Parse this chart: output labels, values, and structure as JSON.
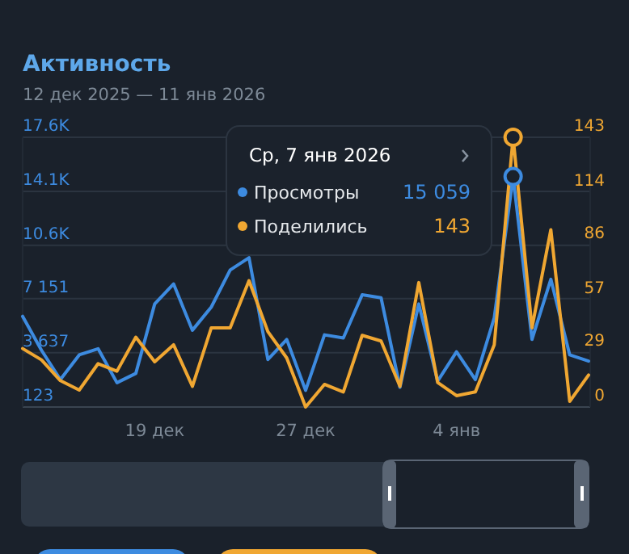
{
  "chart_data": {
    "type": "line",
    "title": "Активность",
    "subtitle": "12 дек 2025 — 11 янв 2026",
    "annotations": [
      "Ср, 7 янв 2026",
      "15 059",
      "143"
    ],
    "x": [
      "2025-12-12",
      "2025-12-13",
      "2025-12-14",
      "2025-12-15",
      "2025-12-16",
      "2025-12-17",
      "2025-12-18",
      "2025-12-19",
      "2025-12-20",
      "2025-12-21",
      "2025-12-22",
      "2025-12-23",
      "2025-12-24",
      "2025-12-25",
      "2025-12-26",
      "2025-12-27",
      "2025-12-28",
      "2025-12-29",
      "2025-12-30",
      "2025-12-31",
      "2026-01-01",
      "2026-01-02",
      "2026-01-03",
      "2026-01-04",
      "2026-01-05",
      "2026-01-06",
      "2026-01-07",
      "2026-01-08",
      "2026-01-09",
      "2026-01-10",
      "2026-01-11"
    ],
    "series": [
      {
        "name": "Просмотры",
        "color": "#3d8be0",
        "values": [
          6000,
          3800,
          1900,
          3500,
          3900,
          1700,
          2300,
          6800,
          8100,
          5100,
          6600,
          9000,
          9800,
          3200,
          4500,
          1200,
          4800,
          4600,
          7400,
          7200,
          1400,
          6800,
          1800,
          3700,
          1900,
          5900,
          15059,
          4500,
          8400,
          3500,
          3100
        ]
      },
      {
        "name": "Поделились",
        "color": "#f0a732",
        "axis": "y2",
        "values": [
          31,
          25,
          14,
          9,
          23,
          19,
          37,
          24,
          33,
          11,
          42,
          42,
          67,
          40,
          26,
          0,
          12,
          8,
          38,
          35,
          11,
          66,
          13,
          6,
          8,
          33,
          143,
          42,
          94,
          3,
          17
        ]
      }
    ],
    "xlim": [
      "2025-12-12",
      "2026-01-11"
    ],
    "xticks": [
      {
        "value": "2025-12-19",
        "label": "19 дек"
      },
      {
        "value": "2025-12-27",
        "label": "27 дек"
      },
      {
        "value": "2026-01-04",
        "label": "4 янв"
      }
    ],
    "ylim": [
      123,
      17600
    ],
    "yticks": [
      123,
      {
        "value": 3637,
        "label": "3 637"
      },
      {
        "value": 7151,
        "label": "7 151"
      },
      {
        "value": 10600,
        "label": "10.6K"
      },
      {
        "value": 14100,
        "label": "14.1K"
      },
      {
        "value": 17600,
        "label": "17.6K"
      }
    ],
    "y2lim": [
      0,
      143
    ],
    "y2ticks": [
      0,
      29,
      57,
      86,
      114,
      143
    ],
    "grid": "y",
    "legend": "top",
    "marker": "none",
    "line_style": "solid"
  }
}
